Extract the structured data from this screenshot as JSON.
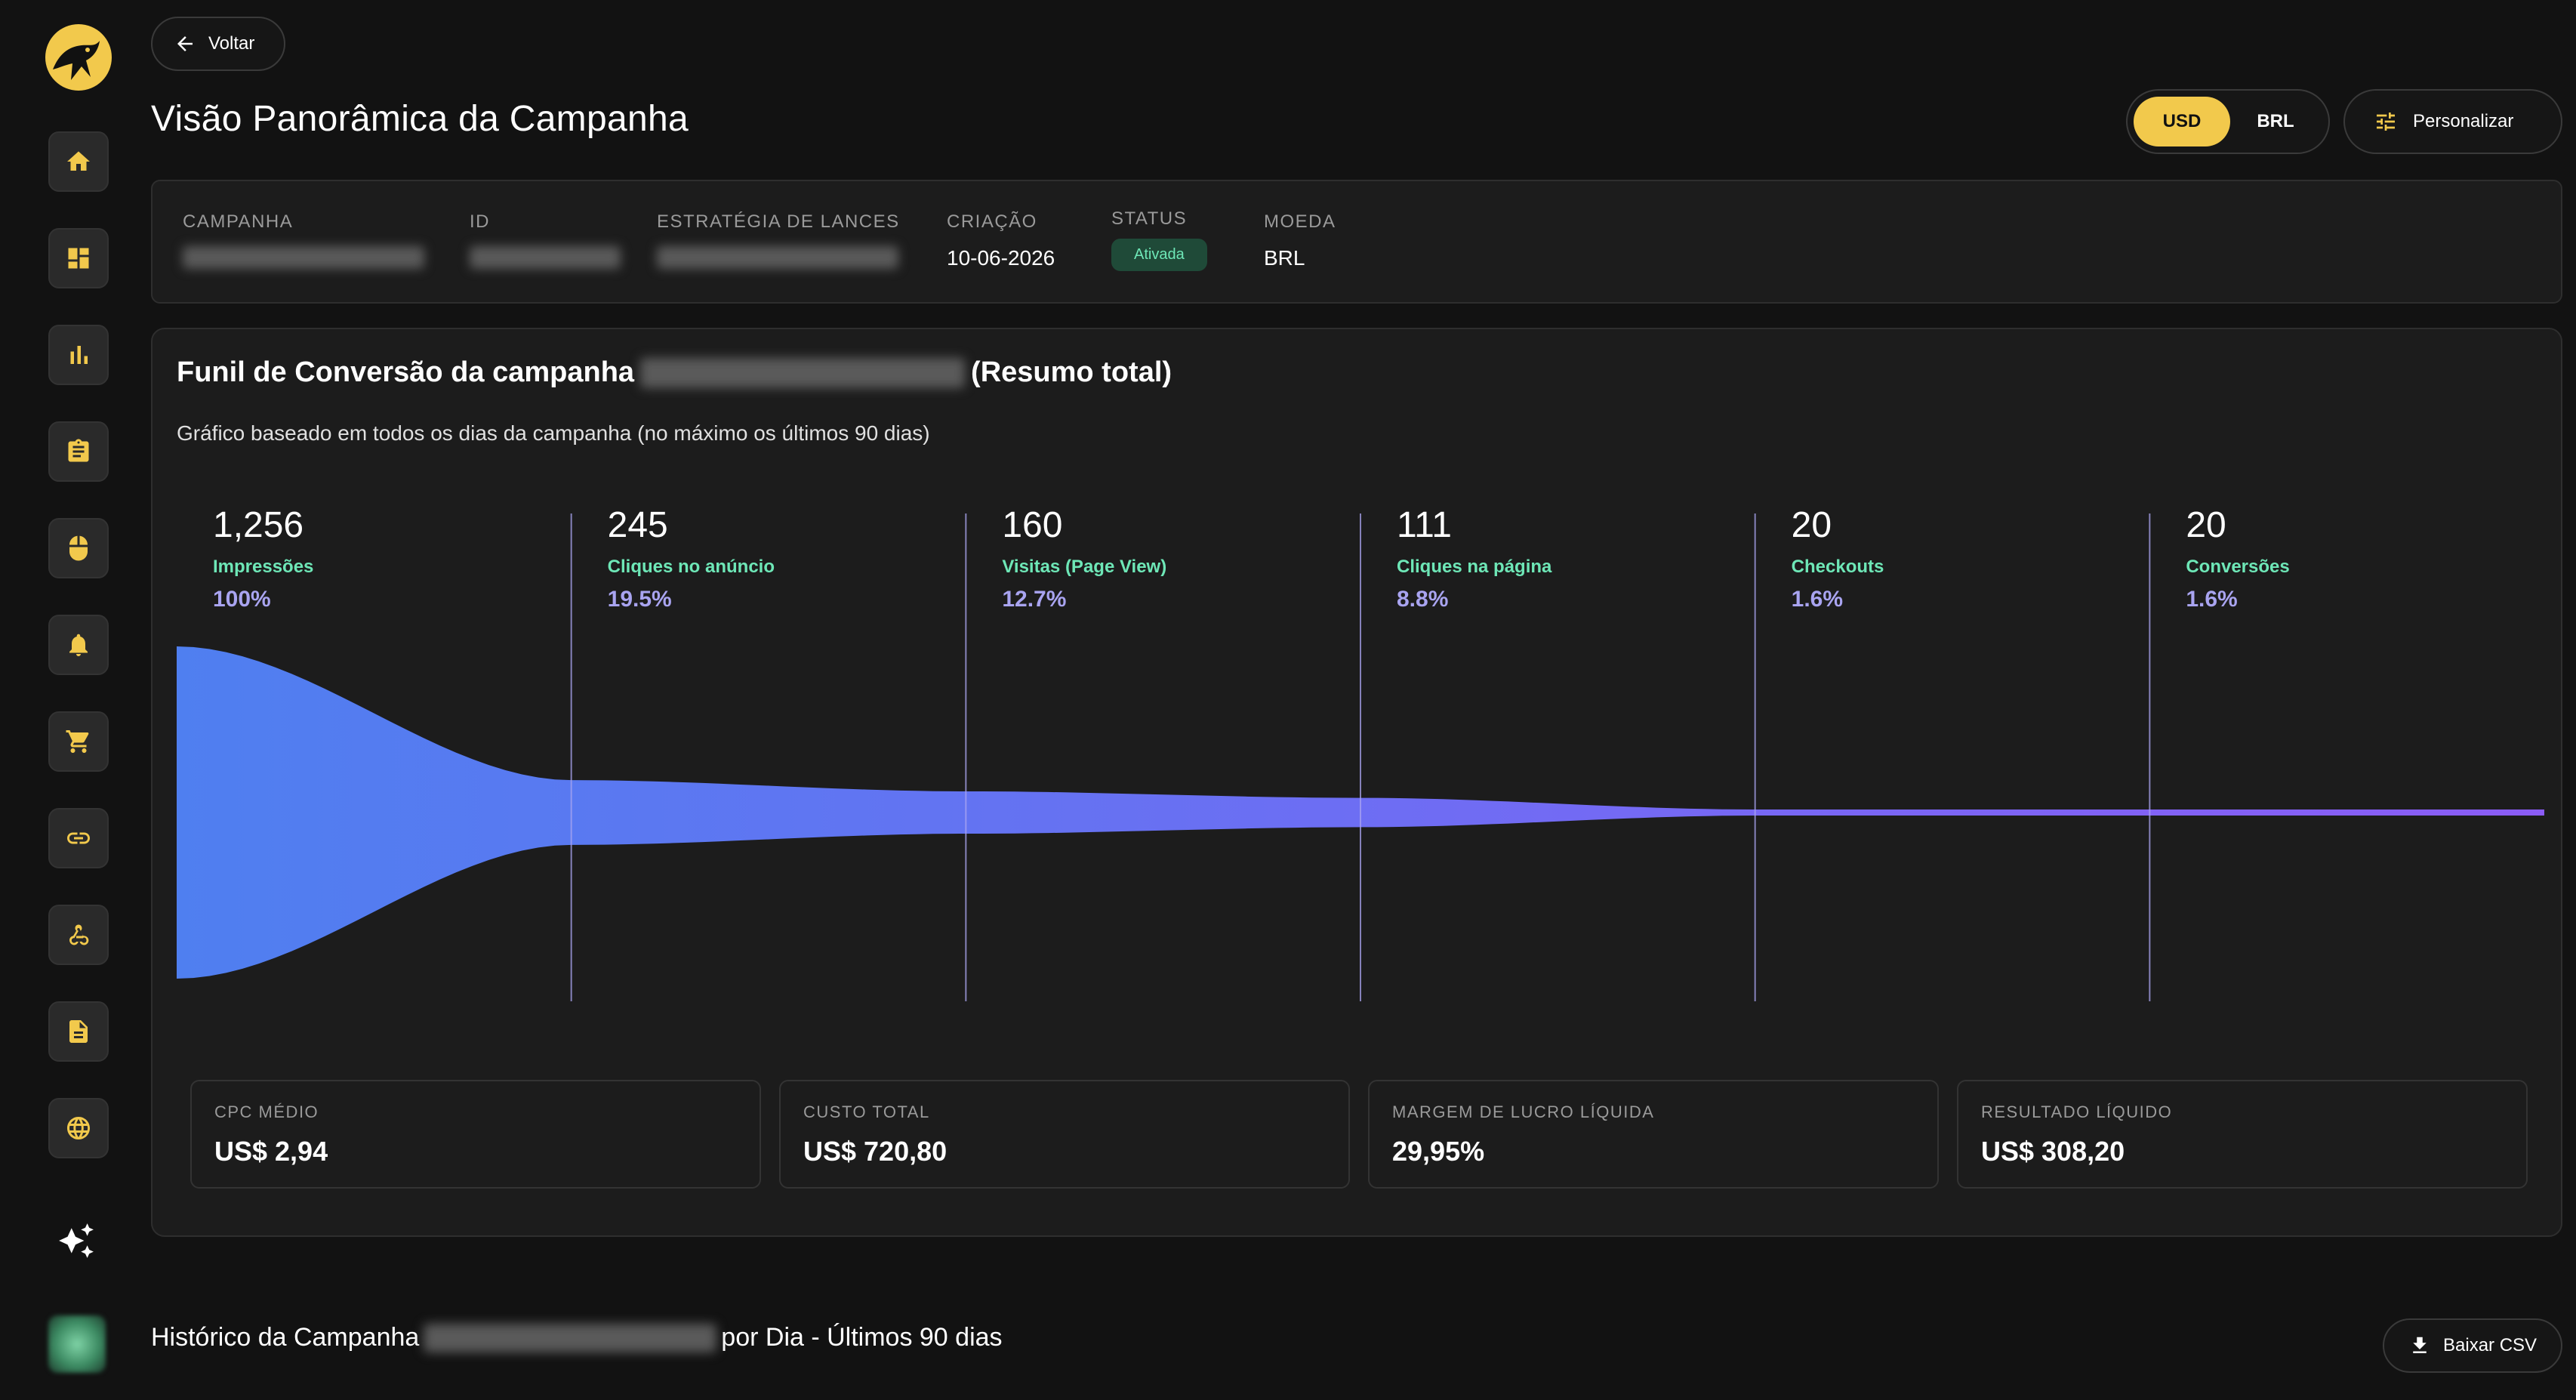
{
  "nav": {
    "back_label": "Voltar",
    "items": [
      "home-icon",
      "dashboard-icon",
      "bar-chart-icon",
      "clipboard-icon",
      "mouse-icon",
      "bell-icon",
      "cart-icon",
      "link-icon",
      "webhook-icon",
      "document-icon",
      "globe-icon"
    ]
  },
  "header": {
    "title": "Visão Panorâmica da Campanha",
    "currency_options": [
      "USD",
      "BRL"
    ],
    "currency_selected": "USD",
    "customize_label": "Personalizar"
  },
  "info": {
    "campaign_label": "CAMPANHA",
    "id_label": "ID",
    "bid_strategy_label": "ESTRATÉGIA DE LANCES",
    "created_label": "CRIAÇÃO",
    "created_value": "10-06-2026",
    "status_label": "STATUS",
    "status_value": "Ativada",
    "currency_label": "MOEDA",
    "currency_value": "BRL"
  },
  "funnel": {
    "title_prefix": "Funil de Conversão da campanha",
    "title_suffix": "(Resumo total)",
    "subtitle": "Gráfico baseado em todos os dias da campanha (no máximo os últimos 90 dias)"
  },
  "chart_data": {
    "type": "area",
    "categories": [
      "Impressões",
      "Cliques no anúncio",
      "Visitas (Page View)",
      "Cliques na página",
      "Checkouts",
      "Conversões"
    ],
    "values": [
      1256,
      245,
      160,
      111,
      20,
      20
    ],
    "value_labels": [
      "1,256",
      "245",
      "160",
      "111",
      "20",
      "20"
    ],
    "percent_labels": [
      "100%",
      "19.5%",
      "12.7%",
      "8.8%",
      "1.6%",
      "1.6%"
    ],
    "grid": false,
    "gradient": [
      "#4f7ff0",
      "#8b5cf6"
    ]
  },
  "metrics": [
    {
      "label": "CPC MÉDIO",
      "value": "US$ 2,94"
    },
    {
      "label": "CUSTO TOTAL",
      "value": "US$ 720,80"
    },
    {
      "label": "MARGEM DE LUCRO LÍQUIDA",
      "value": "29,95%"
    },
    {
      "label": "RESULTADO LÍQUIDO",
      "value": "US$ 308,20"
    }
  ],
  "history": {
    "title_prefix": "Histórico da Campanha",
    "title_suffix": "por Dia - Últimos 90 dias",
    "csv_label": "Baixar CSV"
  },
  "colors": {
    "accent": "#f2c94c",
    "positive": "#6ee7b7",
    "percent": "#a9a4f0",
    "background": "#121212",
    "panel": "#1c1c1c"
  }
}
